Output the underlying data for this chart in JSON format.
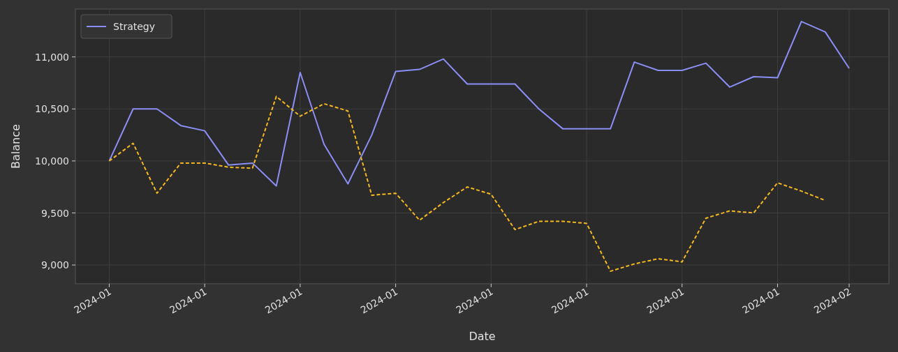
{
  "chart_data": {
    "type": "line",
    "xlabel": "Date",
    "ylabel": "Balance",
    "xlim": [
      "2023-12-30T14:00",
      "2024-02-02T16:00"
    ],
    "ylim": [
      8820,
      11460
    ],
    "xticks": [
      {
        "value": "2024-01-01",
        "label": "2024-01"
      },
      {
        "value": "2024-01-05",
        "label": "2024-01"
      },
      {
        "value": "2024-01-09",
        "label": "2024-01"
      },
      {
        "value": "2024-01-13",
        "label": "2024-01"
      },
      {
        "value": "2024-01-17",
        "label": "2024-01"
      },
      {
        "value": "2024-01-21",
        "label": "2024-01"
      },
      {
        "value": "2024-01-25",
        "label": "2024-01"
      },
      {
        "value": "2024-01-29",
        "label": "2024-01"
      },
      {
        "value": "2024-02-01",
        "label": "2024-02"
      }
    ],
    "yticks": [
      {
        "value": 9000,
        "label": "9,000"
      },
      {
        "value": 9500,
        "label": "9,500"
      },
      {
        "value": 10000,
        "label": "10,000"
      },
      {
        "value": 10500,
        "label": "10,500"
      },
      {
        "value": 11000,
        "label": "11,000"
      }
    ],
    "grid": true,
    "legend": "top left",
    "series": [
      {
        "name": "Strategy",
        "color": "#8b8ff5",
        "line_style": "solid",
        "x": [
          "2024-01-01",
          "2024-01-02",
          "2024-01-03",
          "2024-01-04",
          "2024-01-05",
          "2024-01-06",
          "2024-01-07",
          "2024-01-08",
          "2024-01-09",
          "2024-01-10",
          "2024-01-11",
          "2024-01-12",
          "2024-01-13",
          "2024-01-14",
          "2024-01-15",
          "2024-01-16",
          "2024-01-17",
          "2024-01-18",
          "2024-01-19",
          "2024-01-20",
          "2024-01-21",
          "2024-01-22",
          "2024-01-23",
          "2024-01-24",
          "2024-01-25",
          "2024-01-26",
          "2024-01-27",
          "2024-01-28",
          "2024-01-29",
          "2024-01-30",
          "2024-01-31",
          "2024-02-01"
        ],
        "values": [
          10000,
          10500,
          10500,
          10340,
          10290,
          9960,
          9980,
          9760,
          10850,
          10160,
          9780,
          10250,
          10860,
          10880,
          10980,
          10740,
          10740,
          10740,
          10500,
          10310,
          10310,
          10310,
          10950,
          10870,
          10870,
          10940,
          10710,
          10810,
          10800,
          11340,
          11240,
          10890
        ]
      },
      {
        "color": "#f5b820",
        "line_style": "dashed",
        "x": [
          "2024-01-01",
          "2024-01-02",
          "2024-01-03",
          "2024-01-04",
          "2024-01-05",
          "2024-01-06",
          "2024-01-07",
          "2024-01-08",
          "2024-01-09",
          "2024-01-10",
          "2024-01-11",
          "2024-01-12",
          "2024-01-13",
          "2024-01-14",
          "2024-01-15",
          "2024-01-16",
          "2024-01-17",
          "2024-01-18",
          "2024-01-19",
          "2024-01-20",
          "2024-01-21",
          "2024-01-22",
          "2024-01-23",
          "2024-01-24",
          "2024-01-25",
          "2024-01-26",
          "2024-01-27",
          "2024-01-28",
          "2024-01-29",
          "2024-01-30",
          "2024-01-31"
        ],
        "values": [
          10000,
          10170,
          9690,
          9980,
          9980,
          9940,
          9930,
          10620,
          10430,
          10550,
          10480,
          9670,
          9690,
          9430,
          9600,
          9750,
          9680,
          9340,
          9420,
          9420,
          9400,
          8940,
          9010,
          9060,
          9030,
          9450,
          9520,
          9500,
          9790,
          9710,
          9620
        ]
      }
    ]
  }
}
